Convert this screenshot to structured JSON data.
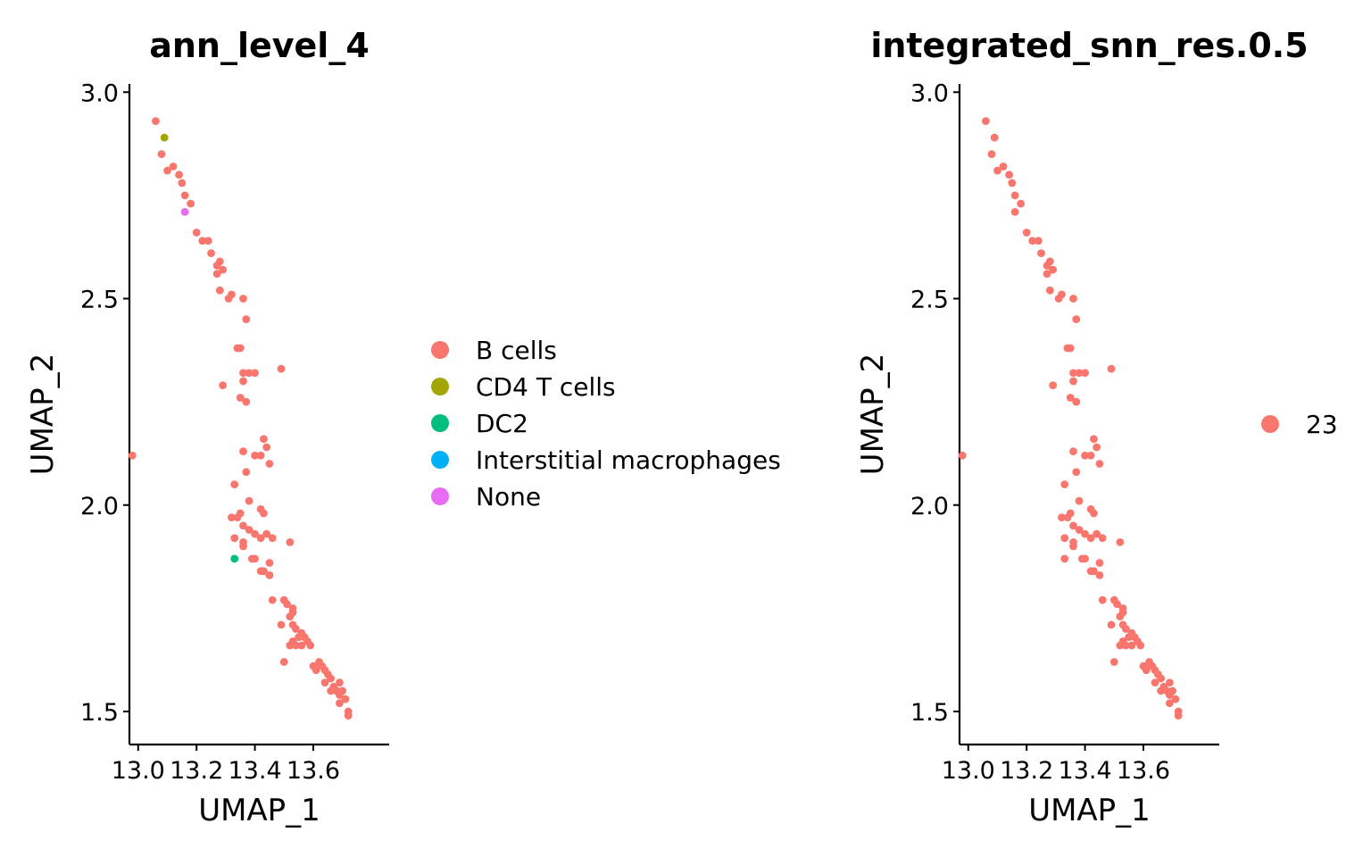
{
  "chart_data": [
    {
      "type": "scatter",
      "title": "ann_level_4",
      "xlabel": "UMAP_1",
      "ylabel": "UMAP_2",
      "xlim": [
        12.97,
        13.86
      ],
      "ylim": [
        1.42,
        3.02
      ],
      "x_ticks": [
        13.0,
        13.2,
        13.4,
        13.6
      ],
      "x_tick_labels": [
        "13.0",
        "13.2",
        "13.4",
        "13.6"
      ],
      "y_ticks": [
        1.5,
        2.0,
        2.5,
        3.0
      ],
      "y_tick_labels": [
        "1.5",
        "2.0",
        "2.5",
        "3.0"
      ],
      "grid": false,
      "legend_position": "right",
      "series": [
        {
          "name": "B cells",
          "color": "#F8766D",
          "points": [
            [
              13.06,
              2.93
            ],
            [
              13.08,
              2.85
            ],
            [
              13.1,
              2.81
            ],
            [
              13.12,
              2.82
            ],
            [
              13.14,
              2.8
            ],
            [
              13.15,
              2.78
            ],
            [
              13.16,
              2.75
            ],
            [
              13.18,
              2.73
            ],
            [
              13.2,
              2.66
            ],
            [
              13.22,
              2.64
            ],
            [
              13.24,
              2.64
            ],
            [
              13.25,
              2.61
            ],
            [
              13.27,
              2.58
            ],
            [
              13.28,
              2.59
            ],
            [
              13.29,
              2.57
            ],
            [
              13.27,
              2.56
            ],
            [
              13.28,
              2.52
            ],
            [
              13.31,
              2.5
            ],
            [
              13.32,
              2.51
            ],
            [
              13.36,
              2.5
            ],
            [
              13.37,
              2.45
            ],
            [
              13.34,
              2.38
            ],
            [
              13.35,
              2.38
            ],
            [
              13.36,
              2.32
            ],
            [
              13.38,
              2.32
            ],
            [
              13.4,
              2.32
            ],
            [
              13.36,
              2.3
            ],
            [
              13.29,
              2.29
            ],
            [
              13.35,
              2.26
            ],
            [
              13.37,
              2.25
            ],
            [
              13.49,
              2.33
            ],
            [
              12.98,
              2.12
            ],
            [
              13.43,
              2.16
            ],
            [
              13.44,
              2.14
            ],
            [
              13.36,
              2.13
            ],
            [
              13.4,
              2.12
            ],
            [
              13.42,
              2.12
            ],
            [
              13.45,
              2.1
            ],
            [
              13.37,
              2.08
            ],
            [
              13.33,
              2.05
            ],
            [
              13.38,
              2.01
            ],
            [
              13.42,
              1.99
            ],
            [
              13.43,
              1.98
            ],
            [
              13.35,
              1.98
            ],
            [
              13.32,
              1.97
            ],
            [
              13.34,
              1.97
            ],
            [
              13.36,
              1.95
            ],
            [
              13.38,
              1.94
            ],
            [
              13.4,
              1.93
            ],
            [
              13.42,
              1.92
            ],
            [
              13.44,
              1.93
            ],
            [
              13.46,
              1.92
            ],
            [
              13.52,
              1.91
            ],
            [
              13.33,
              1.92
            ],
            [
              13.36,
              1.91
            ],
            [
              13.36,
              1.9
            ],
            [
              13.39,
              1.87
            ],
            [
              13.4,
              1.87
            ],
            [
              13.43,
              1.84
            ],
            [
              13.42,
              1.84
            ],
            [
              13.45,
              1.86
            ],
            [
              13.45,
              1.83
            ],
            [
              13.46,
              1.77
            ],
            [
              13.5,
              1.77
            ],
            [
              13.51,
              1.76
            ],
            [
              13.53,
              1.75
            ],
            [
              13.53,
              1.74
            ],
            [
              13.52,
              1.73
            ],
            [
              13.49,
              1.71
            ],
            [
              13.53,
              1.71
            ],
            [
              13.54,
              1.7
            ],
            [
              13.56,
              1.69
            ],
            [
              13.57,
              1.68
            ],
            [
              13.55,
              1.68
            ],
            [
              13.53,
              1.67
            ],
            [
              13.58,
              1.67
            ],
            [
              13.59,
              1.66
            ],
            [
              13.54,
              1.66
            ],
            [
              13.56,
              1.66
            ],
            [
              13.52,
              1.66
            ],
            [
              13.5,
              1.62
            ],
            [
              13.6,
              1.61
            ],
            [
              13.61,
              1.61
            ],
            [
              13.62,
              1.62
            ],
            [
              13.63,
              1.61
            ],
            [
              13.61,
              1.6
            ],
            [
              13.64,
              1.6
            ],
            [
              13.65,
              1.59
            ],
            [
              13.66,
              1.58
            ],
            [
              13.64,
              1.57
            ],
            [
              13.67,
              1.56
            ],
            [
              13.69,
              1.57
            ],
            [
              13.66,
              1.55
            ],
            [
              13.68,
              1.55
            ],
            [
              13.7,
              1.55
            ],
            [
              13.69,
              1.54
            ],
            [
              13.71,
              1.53
            ],
            [
              13.69,
              1.52
            ],
            [
              13.72,
              1.5
            ],
            [
              13.72,
              1.49
            ]
          ]
        },
        {
          "name": "CD4 T cells",
          "color": "#A3A500",
          "points": [
            [
              13.09,
              2.89
            ]
          ]
        },
        {
          "name": "DC2",
          "color": "#00BF7D",
          "points": [
            [
              13.33,
              1.87
            ]
          ]
        },
        {
          "name": "Interstitial macrophages",
          "color": "#00B0F6",
          "points": []
        },
        {
          "name": "None",
          "color": "#E76BF3",
          "points": [
            [
              13.16,
              2.71
            ]
          ]
        }
      ]
    },
    {
      "type": "scatter",
      "title": "integrated_snn_res.0.5",
      "xlabel": "UMAP_1",
      "ylabel": "UMAP_2",
      "xlim": [
        12.97,
        13.86
      ],
      "ylim": [
        1.42,
        3.02
      ],
      "x_ticks": [
        13.0,
        13.2,
        13.4,
        13.6
      ],
      "x_tick_labels": [
        "13.0",
        "13.2",
        "13.4",
        "13.6"
      ],
      "y_ticks": [
        1.5,
        2.0,
        2.5,
        3.0
      ],
      "y_tick_labels": [
        "1.5",
        "2.0",
        "2.5",
        "3.0"
      ],
      "grid": false,
      "legend_position": "right",
      "series": [
        {
          "name": "23",
          "color": "#F8766D",
          "points": [
            [
              13.06,
              2.93
            ],
            [
              13.09,
              2.89
            ],
            [
              13.08,
              2.85
            ],
            [
              13.1,
              2.81
            ],
            [
              13.12,
              2.82
            ],
            [
              13.14,
              2.8
            ],
            [
              13.15,
              2.78
            ],
            [
              13.16,
              2.75
            ],
            [
              13.16,
              2.71
            ],
            [
              13.18,
              2.73
            ],
            [
              13.2,
              2.66
            ],
            [
              13.22,
              2.64
            ],
            [
              13.24,
              2.64
            ],
            [
              13.25,
              2.61
            ],
            [
              13.27,
              2.58
            ],
            [
              13.28,
              2.59
            ],
            [
              13.29,
              2.57
            ],
            [
              13.27,
              2.56
            ],
            [
              13.28,
              2.52
            ],
            [
              13.31,
              2.5
            ],
            [
              13.32,
              2.51
            ],
            [
              13.36,
              2.5
            ],
            [
              13.37,
              2.45
            ],
            [
              13.34,
              2.38
            ],
            [
              13.35,
              2.38
            ],
            [
              13.36,
              2.32
            ],
            [
              13.38,
              2.32
            ],
            [
              13.4,
              2.32
            ],
            [
              13.36,
              2.3
            ],
            [
              13.29,
              2.29
            ],
            [
              13.35,
              2.26
            ],
            [
              13.37,
              2.25
            ],
            [
              13.49,
              2.33
            ],
            [
              12.98,
              2.12
            ],
            [
              13.43,
              2.16
            ],
            [
              13.44,
              2.14
            ],
            [
              13.36,
              2.13
            ],
            [
              13.4,
              2.12
            ],
            [
              13.42,
              2.12
            ],
            [
              13.45,
              2.1
            ],
            [
              13.37,
              2.08
            ],
            [
              13.33,
              2.05
            ],
            [
              13.38,
              2.01
            ],
            [
              13.42,
              1.99
            ],
            [
              13.43,
              1.98
            ],
            [
              13.35,
              1.98
            ],
            [
              13.32,
              1.97
            ],
            [
              13.34,
              1.97
            ],
            [
              13.36,
              1.95
            ],
            [
              13.38,
              1.94
            ],
            [
              13.4,
              1.93
            ],
            [
              13.42,
              1.92
            ],
            [
              13.44,
              1.93
            ],
            [
              13.46,
              1.92
            ],
            [
              13.52,
              1.91
            ],
            [
              13.33,
              1.92
            ],
            [
              13.36,
              1.91
            ],
            [
              13.36,
              1.9
            ],
            [
              13.33,
              1.87
            ],
            [
              13.39,
              1.87
            ],
            [
              13.4,
              1.87
            ],
            [
              13.43,
              1.84
            ],
            [
              13.42,
              1.84
            ],
            [
              13.45,
              1.86
            ],
            [
              13.45,
              1.83
            ],
            [
              13.46,
              1.77
            ],
            [
              13.5,
              1.77
            ],
            [
              13.51,
              1.76
            ],
            [
              13.53,
              1.75
            ],
            [
              13.53,
              1.74
            ],
            [
              13.52,
              1.73
            ],
            [
              13.49,
              1.71
            ],
            [
              13.53,
              1.71
            ],
            [
              13.54,
              1.7
            ],
            [
              13.56,
              1.69
            ],
            [
              13.57,
              1.68
            ],
            [
              13.55,
              1.68
            ],
            [
              13.53,
              1.67
            ],
            [
              13.58,
              1.67
            ],
            [
              13.59,
              1.66
            ],
            [
              13.54,
              1.66
            ],
            [
              13.56,
              1.66
            ],
            [
              13.52,
              1.66
            ],
            [
              13.5,
              1.62
            ],
            [
              13.6,
              1.61
            ],
            [
              13.61,
              1.61
            ],
            [
              13.62,
              1.62
            ],
            [
              13.63,
              1.61
            ],
            [
              13.61,
              1.6
            ],
            [
              13.64,
              1.6
            ],
            [
              13.65,
              1.59
            ],
            [
              13.66,
              1.58
            ],
            [
              13.64,
              1.57
            ],
            [
              13.67,
              1.56
            ],
            [
              13.69,
              1.57
            ],
            [
              13.66,
              1.55
            ],
            [
              13.68,
              1.55
            ],
            [
              13.7,
              1.55
            ],
            [
              13.69,
              1.54
            ],
            [
              13.71,
              1.53
            ],
            [
              13.69,
              1.52
            ],
            [
              13.72,
              1.5
            ],
            [
              13.72,
              1.49
            ]
          ]
        }
      ]
    }
  ]
}
